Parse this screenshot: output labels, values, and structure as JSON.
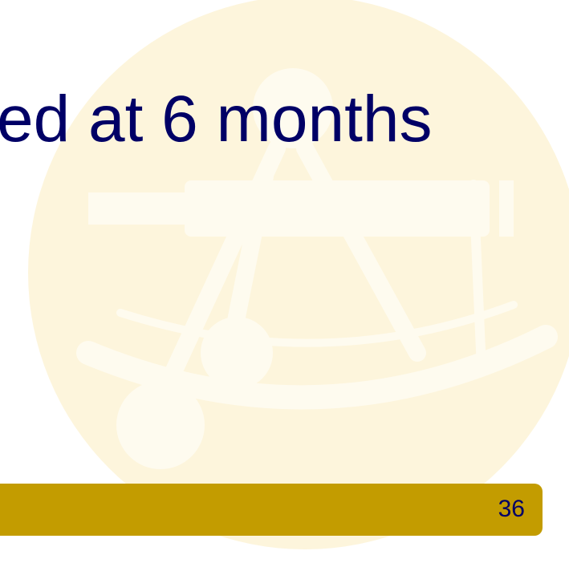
{
  "title": "ed at 6 months",
  "page_number": "36"
}
